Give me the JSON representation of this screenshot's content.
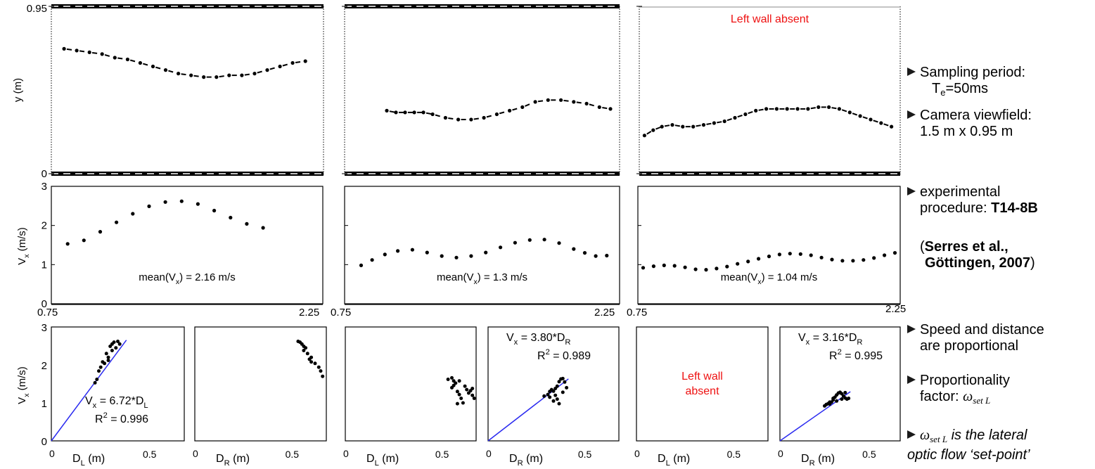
{
  "chart_data": [
    {
      "type": "scatter",
      "panel": "trajectory-1",
      "ylabel": "y (m)",
      "yticks": [
        "0.95",
        "0"
      ],
      "ylim": [
        0,
        0.95
      ],
      "xlim": [
        0.75,
        2.25
      ],
      "points": [
        [
          0.82,
          0.71
        ],
        [
          0.89,
          0.7
        ],
        [
          0.96,
          0.69
        ],
        [
          1.03,
          0.68
        ],
        [
          1.1,
          0.66
        ],
        [
          1.17,
          0.65
        ],
        [
          1.24,
          0.63
        ],
        [
          1.31,
          0.61
        ],
        [
          1.38,
          0.59
        ],
        [
          1.45,
          0.57
        ],
        [
          1.52,
          0.56
        ],
        [
          1.59,
          0.55
        ],
        [
          1.66,
          0.55
        ],
        [
          1.73,
          0.56
        ],
        [
          1.8,
          0.56
        ],
        [
          1.87,
          0.57
        ],
        [
          1.94,
          0.59
        ],
        [
          2.01,
          0.61
        ],
        [
          2.08,
          0.63
        ],
        [
          2.15,
          0.64
        ]
      ]
    },
    {
      "type": "scatter",
      "panel": "trajectory-2",
      "xlim": [
        0.75,
        2.25
      ],
      "ylim": [
        0,
        0.95
      ],
      "points": [
        [
          0.98,
          0.36
        ],
        [
          1.03,
          0.35
        ],
        [
          1.08,
          0.35
        ],
        [
          1.13,
          0.35
        ],
        [
          1.18,
          0.35
        ],
        [
          1.23,
          0.34
        ],
        [
          1.3,
          0.32
        ],
        [
          1.37,
          0.31
        ],
        [
          1.44,
          0.31
        ],
        [
          1.51,
          0.32
        ],
        [
          1.58,
          0.34
        ],
        [
          1.65,
          0.36
        ],
        [
          1.72,
          0.38
        ],
        [
          1.79,
          0.41
        ],
        [
          1.86,
          0.42
        ],
        [
          1.93,
          0.42
        ],
        [
          2.0,
          0.41
        ],
        [
          2.07,
          0.4
        ],
        [
          2.14,
          0.38
        ],
        [
          2.2,
          0.37
        ]
      ]
    },
    {
      "type": "scatter",
      "panel": "trajectory-3",
      "title": "Left wall absent",
      "xlim": [
        0.75,
        2.25
      ],
      "ylim": [
        0,
        0.95
      ],
      "points": [
        [
          0.78,
          0.22
        ],
        [
          0.83,
          0.25
        ],
        [
          0.88,
          0.27
        ],
        [
          0.94,
          0.28
        ],
        [
          1.0,
          0.27
        ],
        [
          1.06,
          0.27
        ],
        [
          1.12,
          0.28
        ],
        [
          1.18,
          0.29
        ],
        [
          1.24,
          0.3
        ],
        [
          1.3,
          0.32
        ],
        [
          1.36,
          0.34
        ],
        [
          1.42,
          0.36
        ],
        [
          1.48,
          0.37
        ],
        [
          1.54,
          0.37
        ],
        [
          1.6,
          0.37
        ],
        [
          1.66,
          0.37
        ],
        [
          1.72,
          0.37
        ],
        [
          1.78,
          0.38
        ],
        [
          1.84,
          0.38
        ],
        [
          1.9,
          0.37
        ],
        [
          1.96,
          0.35
        ],
        [
          2.02,
          0.33
        ],
        [
          2.08,
          0.31
        ],
        [
          2.14,
          0.29
        ],
        [
          2.2,
          0.27
        ]
      ]
    },
    {
      "type": "scatter",
      "panel": "speed-1",
      "ylabel": "V",
      "ylabel_sub": "x",
      "ylabel_unit": " (m/s)",
      "yticks": [
        "3",
        "2",
        "1",
        "0"
      ],
      "ylim": [
        0,
        3
      ],
      "xticks": [
        "0.75",
        "2.25"
      ],
      "xlim": [
        0.75,
        2.25
      ],
      "annotation": "mean(V",
      "annotation_sub": "x",
      "annotation_tail": ") = 2.16 m/s",
      "points": [
        [
          0.84,
          1.53
        ],
        [
          0.93,
          1.62
        ],
        [
          1.02,
          1.84
        ],
        [
          1.11,
          2.08
        ],
        [
          1.2,
          2.3
        ],
        [
          1.29,
          2.49
        ],
        [
          1.38,
          2.6
        ],
        [
          1.47,
          2.62
        ],
        [
          1.56,
          2.55
        ],
        [
          1.65,
          2.38
        ],
        [
          1.74,
          2.2
        ],
        [
          1.83,
          2.04
        ],
        [
          1.92,
          1.94
        ]
      ]
    },
    {
      "type": "scatter",
      "panel": "speed-2",
      "xticks": [
        "0.75",
        "2.25"
      ],
      "xlim": [
        0.75,
        2.25
      ],
      "ylim": [
        0,
        3
      ],
      "annotation": "mean(V",
      "annotation_sub": "x",
      "annotation_tail": ") = 1.3 m/s",
      "points": [
        [
          0.84,
          0.98
        ],
        [
          0.9,
          1.12
        ],
        [
          0.97,
          1.26
        ],
        [
          1.04,
          1.35
        ],
        [
          1.12,
          1.38
        ],
        [
          1.2,
          1.31
        ],
        [
          1.28,
          1.22
        ],
        [
          1.36,
          1.18
        ],
        [
          1.44,
          1.22
        ],
        [
          1.52,
          1.31
        ],
        [
          1.6,
          1.44
        ],
        [
          1.68,
          1.56
        ],
        [
          1.76,
          1.63
        ],
        [
          1.84,
          1.64
        ],
        [
          1.92,
          1.55
        ],
        [
          2.0,
          1.4
        ],
        [
          2.06,
          1.3
        ],
        [
          2.12,
          1.22
        ],
        [
          2.18,
          1.23
        ]
      ]
    },
    {
      "type": "scatter",
      "panel": "speed-3",
      "xticks": [
        "2.25"
      ],
      "xlim": [
        0.75,
        2.25
      ],
      "ylim": [
        0,
        3
      ],
      "annotation": "mean(V",
      "annotation_sub": "x",
      "annotation_tail": ") = 1.04 m/s",
      "points": [
        [
          0.78,
          0.92
        ],
        [
          0.84,
          0.96
        ],
        [
          0.9,
          0.98
        ],
        [
          0.96,
          0.97
        ],
        [
          1.02,
          0.93
        ],
        [
          1.08,
          0.88
        ],
        [
          1.14,
          0.87
        ],
        [
          1.2,
          0.9
        ],
        [
          1.26,
          0.95
        ],
        [
          1.32,
          1.02
        ],
        [
          1.38,
          1.08
        ],
        [
          1.44,
          1.15
        ],
        [
          1.5,
          1.21
        ],
        [
          1.56,
          1.26
        ],
        [
          1.62,
          1.28
        ],
        [
          1.68,
          1.27
        ],
        [
          1.74,
          1.24
        ],
        [
          1.8,
          1.18
        ],
        [
          1.86,
          1.13
        ],
        [
          1.92,
          1.1
        ],
        [
          1.98,
          1.1
        ],
        [
          2.04,
          1.12
        ],
        [
          2.1,
          1.17
        ],
        [
          2.16,
          1.24
        ],
        [
          2.22,
          1.3
        ]
      ]
    },
    {
      "type": "scatter",
      "panel": "speed-vs-left-distance-1",
      "ylabel": "V",
      "ylabel_sub": "x",
      "ylabel_unit": " (m/s)",
      "yticks": [
        "3",
        "2",
        "1",
        "0"
      ],
      "xticks": [
        "0",
        "0.5"
      ],
      "xlabel": "D",
      "xlabel_sub": "L",
      "xlabel_unit": " (m)",
      "xlim": [
        0,
        0.7
      ],
      "ylim": [
        0,
        3
      ],
      "annotation": "V",
      "annotation_sub": "x",
      "annotation_tail": " = 6.72*D",
      "annotation_tail_sub": "L",
      "r2_text": "R",
      "r2_sup": "2",
      "r2_tail": " = 0.996",
      "fit": {
        "slope": 6.72,
        "x_end": 0.395
      },
      "points": [
        [
          0.23,
          1.53
        ],
        [
          0.24,
          1.62
        ],
        [
          0.25,
          1.84
        ],
        [
          0.27,
          2.08
        ],
        [
          0.29,
          2.3
        ],
        [
          0.31,
          2.49
        ],
        [
          0.33,
          2.6
        ],
        [
          0.35,
          2.62
        ],
        [
          0.36,
          2.55
        ],
        [
          0.32,
          2.38
        ],
        [
          0.3,
          2.2
        ],
        [
          0.28,
          2.04
        ],
        [
          0.26,
          1.94
        ],
        [
          0.34,
          2.45
        ],
        [
          0.32,
          2.55
        ],
        [
          0.3,
          2.12
        ]
      ]
    },
    {
      "type": "scatter",
      "panel": "speed-vs-right-distance-1",
      "xticks": [
        "0",
        "0.5"
      ],
      "xlabel": "D",
      "xlabel_sub": "R",
      "xlabel_unit": " (m)",
      "xlim": [
        0,
        0.7
      ],
      "ylim": [
        0,
        3
      ],
      "points": [
        [
          0.55,
          2.62
        ],
        [
          0.56,
          2.6
        ],
        [
          0.57,
          2.55
        ],
        [
          0.58,
          2.49
        ],
        [
          0.58,
          2.38
        ],
        [
          0.6,
          2.3
        ],
        [
          0.62,
          2.2
        ],
        [
          0.62,
          2.08
        ],
        [
          0.64,
          2.04
        ],
        [
          0.66,
          1.94
        ],
        [
          0.67,
          1.84
        ],
        [
          0.68,
          1.7
        ],
        [
          0.59,
          2.45
        ],
        [
          0.61,
          2.15
        ]
      ]
    },
    {
      "type": "scatter",
      "panel": "speed-vs-left-distance-2",
      "xticks": [
        "0",
        "0.5"
      ],
      "xlabel": "D",
      "xlabel_sub": "L",
      "xlabel_unit": " (m)",
      "xlim": [
        0,
        0.7
      ],
      "ylim": [
        0,
        3
      ],
      "points": [
        [
          0.55,
          1.62
        ],
        [
          0.57,
          1.66
        ],
        [
          0.58,
          1.58
        ],
        [
          0.58,
          1.46
        ],
        [
          0.59,
          1.52
        ],
        [
          0.57,
          1.4
        ],
        [
          0.6,
          1.3
        ],
        [
          0.61,
          1.22
        ],
        [
          0.62,
          1.12
        ],
        [
          0.63,
          1.0
        ],
        [
          0.6,
          0.98
        ],
        [
          0.65,
          1.35
        ],
        [
          0.66,
          1.26
        ],
        [
          0.67,
          1.32
        ],
        [
          0.68,
          1.2
        ],
        [
          0.69,
          1.12
        ],
        [
          0.68,
          1.38
        ],
        [
          0.64,
          1.44
        ],
        [
          0.61,
          1.58
        ]
      ]
    },
    {
      "type": "scatter",
      "panel": "speed-vs-right-distance-2",
      "xticks": [
        "0",
        "0.5"
      ],
      "xlabel": "D",
      "xlabel_sub": "R",
      "xlabel_unit": " (m)",
      "xlim": [
        0,
        0.7
      ],
      "ylim": [
        0,
        3
      ],
      "annotation": "V",
      "annotation_sub": "x",
      "annotation_tail": " = 3.80*D",
      "annotation_tail_sub": "R",
      "r2_text": "R",
      "r2_sup": "2",
      "r2_tail": " = 0.989",
      "fit": {
        "slope": 3.8,
        "x_end": 0.43
      },
      "points": [
        [
          0.3,
          1.18
        ],
        [
          0.32,
          1.22
        ],
        [
          0.33,
          1.3
        ],
        [
          0.34,
          1.35
        ],
        [
          0.35,
          1.31
        ],
        [
          0.36,
          1.38
        ],
        [
          0.37,
          1.44
        ],
        [
          0.38,
          1.56
        ],
        [
          0.39,
          1.63
        ],
        [
          0.4,
          1.64
        ],
        [
          0.41,
          1.55
        ],
        [
          0.42,
          1.4
        ],
        [
          0.36,
          1.2
        ],
        [
          0.37,
          1.1
        ],
        [
          0.38,
          0.98
        ],
        [
          0.35,
          1.05
        ],
        [
          0.4,
          1.28
        ],
        [
          0.33,
          1.15
        ]
      ]
    },
    {
      "type": "text",
      "panel": "speed-vs-left-distance-3",
      "annotation": "Left wall absent",
      "xticks": [
        "0",
        "0.5"
      ],
      "xlabel": "D",
      "xlabel_sub": "L",
      "xlabel_unit": " (m)"
    },
    {
      "type": "scatter",
      "panel": "speed-vs-right-distance-3",
      "xticks": [
        "0",
        "0.5"
      ],
      "xlabel": "D",
      "xlabel_sub": "R",
      "xlabel_unit": " (m)",
      "xlim": [
        0,
        0.7
      ],
      "ylim": [
        0,
        3
      ],
      "annotation": "V",
      "annotation_sub": "x",
      "annotation_tail": " = 3.16*D",
      "annotation_tail_sub": "R",
      "r2_text": "R",
      "r2_sup": "2",
      "r2_tail": " = 0.995",
      "fit": {
        "slope": 3.16,
        "x_end": 0.41
      },
      "points": [
        [
          0.26,
          0.92
        ],
        [
          0.27,
          0.96
        ],
        [
          0.28,
          0.98
        ],
        [
          0.29,
          0.97
        ],
        [
          0.3,
          1.02
        ],
        [
          0.31,
          1.08
        ],
        [
          0.32,
          1.15
        ],
        [
          0.33,
          1.21
        ],
        [
          0.34,
          1.26
        ],
        [
          0.35,
          1.28
        ],
        [
          0.36,
          1.24
        ],
        [
          0.37,
          1.18
        ],
        [
          0.38,
          1.13
        ],
        [
          0.39,
          1.1
        ],
        [
          0.4,
          1.12
        ],
        [
          0.38,
          1.27
        ],
        [
          0.36,
          1.1
        ],
        [
          0.33,
          1.05
        ],
        [
          0.31,
          1.12
        ],
        [
          0.29,
          1.02
        ]
      ]
    }
  ],
  "bullets": {
    "b1_line1": "Sampling period:",
    "b1_T": "T",
    "b1_T_sub": "e",
    "b1_T_tail": "=50ms",
    "b2_line1": "Camera viewfield:",
    "b2_line2": "1.5 m x 0.95 m",
    "b3_line1": "experimental",
    "b3_line2_a": "procedure: ",
    "b3_line2_b": "T14-8B",
    "b3_ref_open": "(",
    "b3_ref_line1": "Serres et al.,",
    "b3_ref_line2": "Göttingen, 2007",
    "b3_ref_close": ")",
    "b4_line1": "Speed and distance",
    "b4_line2": "are proportional",
    "b5_line1": "Proportionality",
    "b5_line2": "factor: ",
    "b5_omega": "ω",
    "b5_omega_sub": "set L",
    "b6_omega": "ω",
    "b6_omega_sub": "set L",
    "b6_line1_tail": " is the lateral",
    "b6_line2": "optic flow ‘set-point’"
  },
  "colors": {
    "points": "#000000",
    "fit": "#2a2af0",
    "note": "#ee1111",
    "wall": "#000000"
  }
}
